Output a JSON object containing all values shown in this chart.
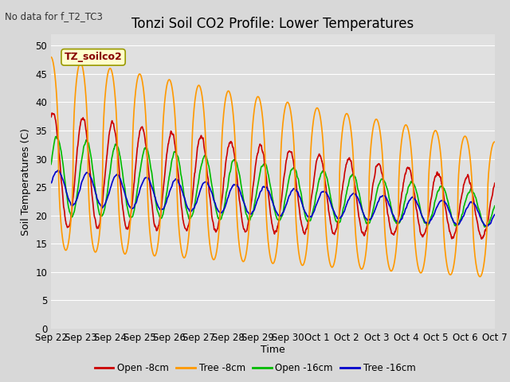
{
  "title": "Tonzi Soil CO2 Profile: Lower Temperatures",
  "subtitle": "No data for f_T2_TC3",
  "ylabel": "Soil Temperatures (C)",
  "xlabel": "Time",
  "legend_label": "TZ_soilco2",
  "ylim": [
    0,
    52
  ],
  "yticks": [
    0,
    5,
    10,
    15,
    20,
    25,
    30,
    35,
    40,
    45,
    50
  ],
  "xtick_labels": [
    "Sep 22",
    "Sep 23",
    "Sep 24",
    "Sep 25",
    "Sep 26",
    "Sep 27",
    "Sep 28",
    "Sep 29",
    "Sep 30",
    "Oct 1",
    "Oct 2",
    "Oct 3",
    "Oct 4",
    "Oct 5",
    "Oct 6",
    "Oct 7"
  ],
  "series_labels": [
    "Open -8cm",
    "Tree -8cm",
    "Open -16cm",
    "Tree -16cm"
  ],
  "series_colors": [
    "#cc0000",
    "#ff9900",
    "#00bb00",
    "#0000cc"
  ],
  "background_color": "#d8d8d8",
  "plot_bg_color": "#e0e0e0",
  "title_fontsize": 12,
  "axis_fontsize": 9,
  "tick_fontsize": 8.5
}
